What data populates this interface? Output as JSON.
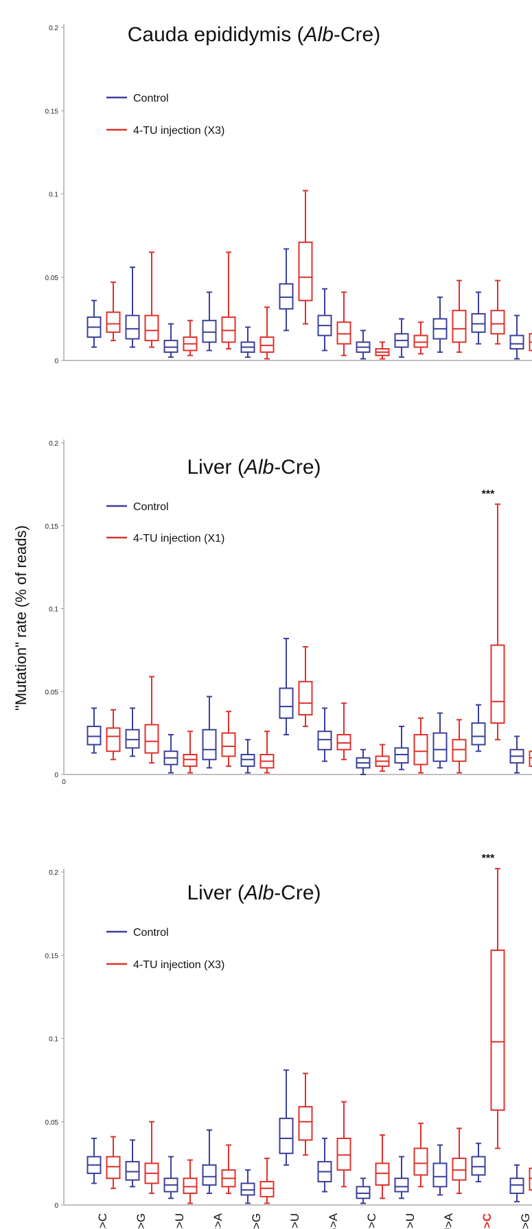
{
  "y_axis_label": "\"Mutation\" rate (% of reads)",
  "colors": {
    "control": "#3a3f9a",
    "treated": "#e0302a",
    "axis": "#9a9a9a",
    "text": "#111111"
  },
  "categories": [
    "A>C",
    "A>G",
    "A>U",
    "C>A",
    "C>G",
    "C>U",
    "G>A",
    "G>C",
    "G>U",
    "U>A",
    "U>C",
    "U>G"
  ],
  "highlight_category": "U>C",
  "chart_data": [
    {
      "type": "box",
      "title_parts": [
        "Cauda epididymis (",
        "Alb",
        "-Cre)"
      ],
      "legend": [
        "Control",
        "4-TU injection (X3)"
      ],
      "ylim": [
        0,
        0.2
      ],
      "y_ticks": [
        "0",
        "0.05",
        "0.1",
        "0.15",
        "0.2"
      ],
      "significance": null,
      "series": [
        {
          "name": "Control",
          "boxes": [
            [
              0.008,
              0.014,
              0.02,
              0.026,
              0.036
            ],
            [
              0.008,
              0.013,
              0.019,
              0.027,
              0.056
            ],
            [
              0.002,
              0.005,
              0.008,
              0.012,
              0.022
            ],
            [
              0.006,
              0.011,
              0.017,
              0.024,
              0.041
            ],
            [
              0.002,
              0.005,
              0.008,
              0.011,
              0.02
            ],
            [
              0.018,
              0.031,
              0.038,
              0.046,
              0.067
            ],
            [
              0.006,
              0.015,
              0.021,
              0.027,
              0.043
            ],
            [
              0.001,
              0.005,
              0.008,
              0.011,
              0.018
            ],
            [
              0.002,
              0.008,
              0.012,
              0.016,
              0.025
            ],
            [
              0.005,
              0.013,
              0.019,
              0.025,
              0.038
            ],
            [
              0.01,
              0.017,
              0.022,
              0.028,
              0.041
            ],
            [
              0.001,
              0.007,
              0.01,
              0.015,
              0.027
            ]
          ]
        },
        {
          "name": "4-TU injection (X3)",
          "boxes": [
            [
              0.012,
              0.017,
              0.022,
              0.029,
              0.047
            ],
            [
              0.008,
              0.012,
              0.018,
              0.027,
              0.065
            ],
            [
              0.003,
              0.006,
              0.01,
              0.014,
              0.024
            ],
            [
              0.007,
              0.011,
              0.018,
              0.026,
              0.065
            ],
            [
              0.001,
              0.005,
              0.009,
              0.014,
              0.032
            ],
            [
              0.022,
              0.036,
              0.05,
              0.071,
              0.102
            ],
            [
              0.003,
              0.01,
              0.016,
              0.023,
              0.041
            ],
            [
              0.001,
              0.003,
              0.005,
              0.007,
              0.011
            ],
            [
              0.004,
              0.008,
              0.011,
              0.015,
              0.023
            ],
            [
              0.005,
              0.011,
              0.019,
              0.03,
              0.048
            ],
            [
              0.01,
              0.016,
              0.022,
              0.03,
              0.048
            ],
            [
              0.002,
              0.006,
              0.011,
              0.016,
              0.033
            ]
          ]
        }
      ]
    },
    {
      "type": "box",
      "title_parts": [
        "Liver (",
        "Alb",
        "-Cre)"
      ],
      "legend": [
        "Control",
        "4-TU injection (X1)"
      ],
      "ylim": [
        0,
        0.2
      ],
      "y_ticks": [
        "0",
        "0.05",
        "0.1",
        "0.15",
        "0.2"
      ],
      "significance": {
        "category": "U>C",
        "label": "***"
      },
      "series": [
        {
          "name": "Control",
          "boxes": [
            [
              0.013,
              0.018,
              0.023,
              0.029,
              0.04
            ],
            [
              0.011,
              0.016,
              0.021,
              0.027,
              0.04
            ],
            [
              0.001,
              0.006,
              0.01,
              0.014,
              0.024
            ],
            [
              0.004,
              0.009,
              0.015,
              0.027,
              0.047
            ],
            [
              0.001,
              0.005,
              0.009,
              0.012,
              0.021
            ],
            [
              0.024,
              0.034,
              0.041,
              0.052,
              0.082
            ],
            [
              0.008,
              0.015,
              0.021,
              0.026,
              0.04
            ],
            [
              0.0,
              0.004,
              0.007,
              0.01,
              0.015
            ],
            [
              0.003,
              0.007,
              0.012,
              0.016,
              0.029
            ],
            [
              0.004,
              0.008,
              0.015,
              0.025,
              0.037
            ],
            [
              0.014,
              0.018,
              0.023,
              0.031,
              0.042
            ],
            [
              0.001,
              0.007,
              0.011,
              0.015,
              0.023
            ]
          ]
        },
        {
          "name": "4-TU injection (X1)",
          "boxes": [
            [
              0.009,
              0.014,
              0.023,
              0.028,
              0.039
            ],
            [
              0.007,
              0.013,
              0.02,
              0.03,
              0.059
            ],
            [
              0.001,
              0.005,
              0.009,
              0.012,
              0.026
            ],
            [
              0.005,
              0.011,
              0.017,
              0.025,
              0.038
            ],
            [
              0.001,
              0.004,
              0.008,
              0.012,
              0.026
            ],
            [
              0.029,
              0.036,
              0.043,
              0.056,
              0.077
            ],
            [
              0.009,
              0.015,
              0.019,
              0.024,
              0.043
            ],
            [
              0.002,
              0.005,
              0.008,
              0.011,
              0.018
            ],
            [
              0.001,
              0.006,
              0.014,
              0.024,
              0.034
            ],
            [
              0.001,
              0.008,
              0.015,
              0.021,
              0.033
            ],
            [
              0.021,
              0.031,
              0.044,
              0.078,
              0.163
            ],
            [
              0.001,
              0.005,
              0.01,
              0.014,
              0.021
            ]
          ]
        }
      ]
    },
    {
      "type": "box",
      "title_parts": [
        "Liver (",
        "Alb",
        "-Cre)"
      ],
      "legend": [
        "Control",
        "4-TU injection (X3)"
      ],
      "ylim": [
        0,
        0.2
      ],
      "y_ticks": [
        "0",
        "0.05",
        "0.1",
        "0.15",
        "0.2"
      ],
      "significance": {
        "category": "U>C",
        "label": "***"
      },
      "series": [
        {
          "name": "Control",
          "boxes": [
            [
              0.013,
              0.019,
              0.024,
              0.029,
              0.04
            ],
            [
              0.011,
              0.015,
              0.02,
              0.026,
              0.039
            ],
            [
              0.004,
              0.008,
              0.012,
              0.016,
              0.029
            ],
            [
              0.007,
              0.012,
              0.017,
              0.024,
              0.045
            ],
            [
              0.001,
              0.006,
              0.009,
              0.013,
              0.021
            ],
            [
              0.024,
              0.031,
              0.04,
              0.052,
              0.081
            ],
            [
              0.008,
              0.014,
              0.02,
              0.026,
              0.04
            ],
            [
              0.001,
              0.004,
              0.007,
              0.011,
              0.016
            ],
            [
              0.004,
              0.008,
              0.011,
              0.016,
              0.029
            ],
            [
              0.006,
              0.011,
              0.017,
              0.025,
              0.036
            ],
            [
              0.014,
              0.018,
              0.023,
              0.029,
              0.037
            ],
            [
              0.002,
              0.007,
              0.012,
              0.016,
              0.024
            ]
          ]
        },
        {
          "name": "4-TU injection (X3)",
          "boxes": [
            [
              0.01,
              0.016,
              0.023,
              0.029,
              0.041
            ],
            [
              0.007,
              0.013,
              0.019,
              0.025,
              0.05
            ],
            [
              0.001,
              0.007,
              0.011,
              0.016,
              0.027
            ],
            [
              0.007,
              0.011,
              0.016,
              0.021,
              0.036
            ],
            [
              0.001,
              0.005,
              0.01,
              0.014,
              0.028
            ],
            [
              0.03,
              0.039,
              0.05,
              0.059,
              0.079
            ],
            [
              0.011,
              0.021,
              0.03,
              0.04,
              0.062
            ],
            [
              0.004,
              0.012,
              0.019,
              0.025,
              0.042
            ],
            [
              0.011,
              0.018,
              0.025,
              0.034,
              0.049
            ],
            [
              0.007,
              0.015,
              0.021,
              0.028,
              0.046
            ],
            [
              0.034,
              0.057,
              0.098,
              0.153,
              0.202
            ],
            [
              0.003,
              0.009,
              0.016,
              0.022,
              0.033
            ]
          ]
        }
      ]
    }
  ]
}
